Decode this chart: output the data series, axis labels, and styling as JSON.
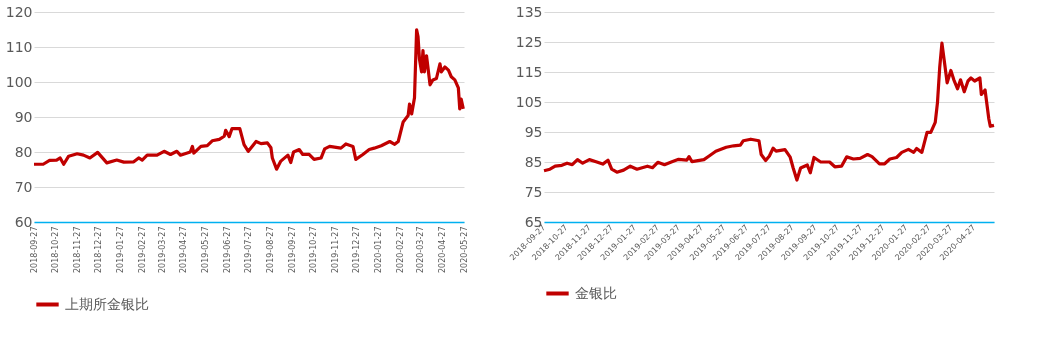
{
  "chart_data": [
    {
      "type": "line",
      "x": [
        "2018-09-27",
        "2018-10-10",
        "2018-10-19",
        "2018-10-29",
        "2018-11-03",
        "2018-11-08",
        "2018-11-15",
        "2018-11-27",
        "2018-12-06",
        "2018-12-15",
        "2018-12-26",
        "2019-01-08",
        "2019-01-22",
        "2019-02-01",
        "2019-02-15",
        "2019-02-22",
        "2019-02-27",
        "2019-03-06",
        "2019-03-20",
        "2019-03-30",
        "2019-04-08",
        "2019-04-17",
        "2019-04-22",
        "2019-05-06",
        "2019-05-09",
        "2019-05-11",
        "2019-05-21",
        "2019-05-30",
        "2019-06-06",
        "2019-06-16",
        "2019-06-23",
        "2019-06-25",
        "2019-06-30",
        "2019-07-04",
        "2019-07-15",
        "2019-07-21",
        "2019-07-27",
        "2019-08-07",
        "2019-08-14",
        "2019-08-23",
        "2019-08-28",
        "2019-08-30",
        "2019-09-05",
        "2019-09-11",
        "2019-09-21",
        "2019-09-25",
        "2019-09-29",
        "2019-10-07",
        "2019-10-12",
        "2019-10-21",
        "2019-10-28",
        "2019-11-07",
        "2019-11-12",
        "2019-11-19",
        "2019-12-05",
        "2019-12-12",
        "2019-12-22",
        "2019-12-26",
        "2020-01-05",
        "2020-01-14",
        "2020-01-21",
        "2020-01-31",
        "2020-02-12",
        "2020-02-19",
        "2020-02-24",
        "2020-03-02",
        "2020-03-09",
        "2020-03-11",
        "2020-03-14",
        "2020-03-18",
        "2020-03-21",
        "2020-03-23",
        "2020-03-25",
        "2020-03-28",
        "2020-03-30",
        "2020-04-01",
        "2020-04-04",
        "2020-04-09",
        "2020-04-13",
        "2020-04-18",
        "2020-04-23",
        "2020-04-25",
        "2020-04-30",
        "2020-05-05",
        "2020-05-09",
        "2020-05-14",
        "2020-05-19",
        "2020-05-21",
        "2020-05-23",
        "2020-05-26"
      ],
      "series": [
        {
          "name": "上期所金银比",
          "color": "#c00000",
          "values": [
            76.5,
            76.5,
            77.6,
            77.7,
            78.3,
            76.5,
            78.8,
            79.5,
            79.1,
            78.3,
            79.9,
            76.9,
            77.7,
            77.1,
            77.2,
            78.3,
            77.7,
            79.1,
            79.1,
            80.2,
            79.3,
            80.2,
            79.1,
            80.0,
            81.6,
            79.7,
            81.6,
            81.8,
            83.2,
            83.6,
            84.5,
            86.2,
            84.4,
            86.7,
            86.7,
            82.1,
            80.2,
            83.0,
            82.4,
            82.6,
            81.2,
            78.3,
            75.1,
            77.4,
            79.1,
            77.0,
            80.0,
            80.7,
            79.3,
            79.3,
            77.9,
            78.3,
            80.9,
            81.6,
            81.1,
            82.3,
            81.6,
            77.9,
            79.3,
            80.7,
            81.1,
            81.8,
            83.0,
            82.2,
            83.0,
            88.6,
            90.4,
            93.7,
            90.9,
            95.5,
            114.9,
            113.0,
            106.6,
            102.9,
            109.0,
            102.9,
            107.5,
            99.2,
            100.6,
            101.0,
            105.2,
            102.9,
            104.3,
            103.4,
            101.5,
            100.6,
            98.3,
            92.3,
            95.1,
            92.3
          ]
        }
      ],
      "xlim": [
        "2018-09-27",
        "2020-05-27"
      ],
      "xticks": [
        "2018-09-27",
        "2018-10-27",
        "2018-11-27",
        "2018-12-27",
        "2019-01-27",
        "2019-02-27",
        "2019-03-27",
        "2019-04-27",
        "2019-05-27",
        "2019-06-27",
        "2019-07-27",
        "2019-08-27",
        "2019-09-27",
        "2019-10-27",
        "2019-11-27",
        "2019-12-27",
        "2020-01-27",
        "2020-02-27",
        "2020-03-27",
        "2020-04-27",
        "2020-05-27"
      ],
      "ylim": [
        60,
        120
      ],
      "yticks": [
        60,
        70,
        80,
        90,
        100,
        110,
        120
      ],
      "grid": "y",
      "legend": "bottom"
    },
    {
      "type": "line",
      "x": [
        "2018-09-27",
        "2018-10-05",
        "2018-10-12",
        "2018-10-21",
        "2018-10-28",
        "2018-11-04",
        "2018-11-11",
        "2018-11-18",
        "2018-11-27",
        "2018-12-06",
        "2018-12-15",
        "2018-12-22",
        "2018-12-27",
        "2019-01-03",
        "2019-01-12",
        "2019-01-21",
        "2019-01-30",
        "2019-02-13",
        "2019-02-20",
        "2019-02-27",
        "2019-03-08",
        "2019-03-18",
        "2019-03-27",
        "2019-04-07",
        "2019-04-10",
        "2019-04-14",
        "2019-04-30",
        "2019-05-07",
        "2019-05-16",
        "2019-05-30",
        "2019-06-09",
        "2019-06-18",
        "2019-06-22",
        "2019-07-02",
        "2019-07-13",
        "2019-07-16",
        "2019-07-22",
        "2019-07-27",
        "2019-08-01",
        "2019-08-05",
        "2019-08-17",
        "2019-08-24",
        "2019-08-28",
        "2019-09-02",
        "2019-09-07",
        "2019-09-16",
        "2019-09-20",
        "2019-09-25",
        "2019-10-04",
        "2019-10-16",
        "2019-10-23",
        "2019-11-01",
        "2019-11-08",
        "2019-11-17",
        "2019-11-26",
        "2019-12-06",
        "2019-12-12",
        "2019-12-22",
        "2019-12-29",
        "2020-01-05",
        "2020-01-14",
        "2020-01-21",
        "2020-01-30",
        "2020-02-06",
        "2020-02-10",
        "2020-02-17",
        "2020-02-24",
        "2020-02-29",
        "2020-03-06",
        "2020-03-09",
        "2020-03-12",
        "2020-03-15",
        "2020-03-18",
        "2020-03-22",
        "2020-03-27",
        "2020-03-31",
        "2020-04-05",
        "2020-04-09",
        "2020-04-14",
        "2020-04-19",
        "2020-04-23",
        "2020-04-28",
        "2020-05-05",
        "2020-05-07",
        "2020-05-12",
        "2020-05-17",
        "2020-05-19",
        "2020-05-24"
      ],
      "series": [
        {
          "name": "金银比",
          "color": "#c00000",
          "values": [
            82.1,
            82.6,
            83.6,
            83.9,
            84.6,
            84.1,
            85.8,
            84.6,
            85.8,
            85.1,
            84.3,
            85.6,
            82.6,
            81.6,
            82.3,
            83.6,
            82.6,
            83.6,
            83.1,
            84.9,
            84.1,
            85.1,
            85.9,
            85.6,
            86.8,
            85.1,
            85.8,
            87.0,
            88.6,
            89.9,
            90.4,
            90.6,
            92.1,
            92.6,
            92.1,
            87.5,
            85.5,
            87.0,
            89.6,
            88.6,
            89.1,
            86.6,
            83.0,
            79.0,
            83.0,
            84.0,
            81.4,
            86.5,
            85.0,
            85.0,
            83.4,
            83.6,
            86.7,
            86.0,
            86.2,
            87.5,
            86.8,
            84.4,
            84.4,
            86.0,
            86.5,
            88.2,
            89.2,
            88.2,
            89.5,
            88.2,
            94.9,
            94.9,
            98.2,
            104.8,
            116.5,
            124.6,
            119.0,
            111.4,
            115.5,
            112.4,
            109.4,
            112.4,
            108.4,
            112.0,
            113.0,
            112.0,
            113.0,
            107.5,
            109.0,
            99.4,
            96.9,
            97.2
          ]
        }
      ],
      "xlim": [
        "2018-09-27",
        "2020-05-24"
      ],
      "xticks": [
        "2018-09-27",
        "2018-10-27",
        "2018-11-27",
        "2018-12-27",
        "2019-01-27",
        "2019-02-27",
        "2019-03-27",
        "2019-04-27",
        "2019-05-27",
        "2019-06-27",
        "2019-07-27",
        "2019-08-27",
        "2019-09-27",
        "2019-10-27",
        "2019-11-27",
        "2019-12-27",
        "2020-01-27",
        "2020-02-27",
        "2020-03-27",
        "2020-04-27"
      ],
      "ylim": [
        65,
        135
      ],
      "yticks": [
        65,
        75,
        85,
        95,
        105,
        115,
        125,
        135
      ],
      "grid": "y",
      "legend": "bottom"
    }
  ]
}
